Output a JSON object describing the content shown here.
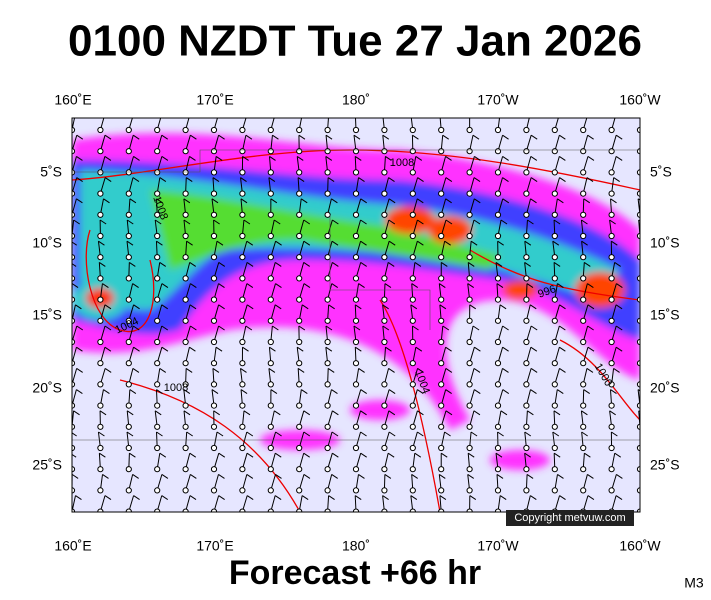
{
  "header": {
    "title": "0100 NZDT Tue 27 Jan 2026"
  },
  "axes": {
    "lon_labels": [
      "160˚E",
      "170˚E",
      "180˚",
      "170˚W",
      "160˚W"
    ],
    "lat_labels": [
      "5˚S",
      "10˚S",
      "15˚S",
      "20˚S",
      "25˚S"
    ]
  },
  "isobar_labels": [
    "1008",
    "1008",
    "1004",
    "1008",
    "1004",
    "996",
    "1000"
  ],
  "copyright": "Copyright metvuw.com",
  "footer": {
    "forecast": "Forecast +66 hr",
    "model": "M3"
  }
}
